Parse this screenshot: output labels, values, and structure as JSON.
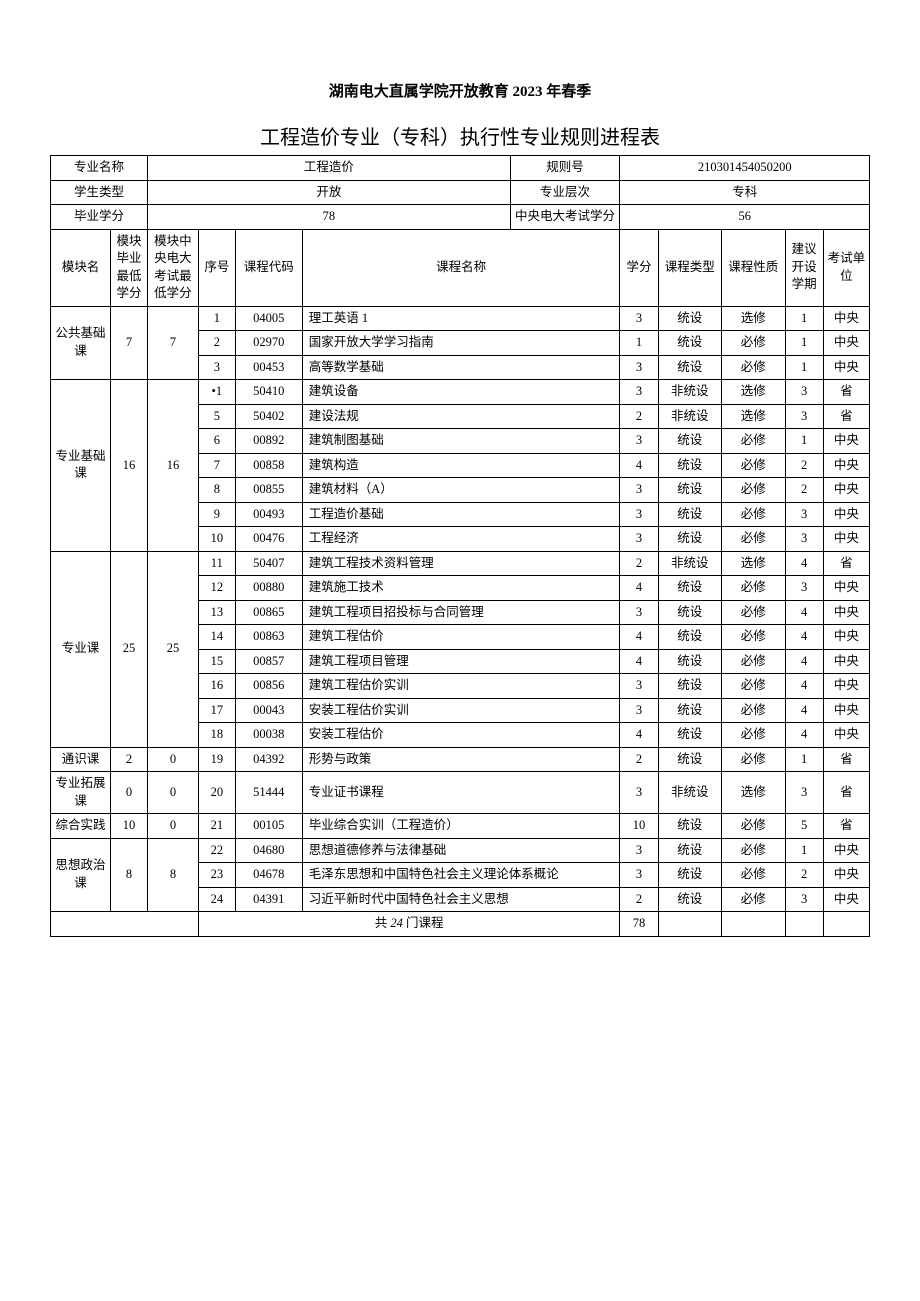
{
  "title_line1": "湖南电大直属学院开放教育 2023 年春季",
  "title_line2": "工程造价专业（专科）执行性专业规则进程表",
  "header": {
    "labels": {
      "major_name": "专业名称",
      "student_type": "学生类型",
      "grad_credits": "毕业学分",
      "rule_no": "规则号",
      "level": "专业层次",
      "central_exam_credits": "中央电大考试学分"
    },
    "values": {
      "major_name": "工程造价",
      "student_type": "开放",
      "grad_credits": "78",
      "rule_no": "210301454050200",
      "level": "专科",
      "central_exam_credits": "56"
    }
  },
  "columns": {
    "module": "模块名",
    "module_min": "模块毕业最低学分",
    "module_central_min": "模块中央电大考试最低学分",
    "seq": "序号",
    "code": "课程代码",
    "course": "课程名称",
    "credit": "学分",
    "ctype": "课程类型",
    "cnature": "课程性质",
    "semester": "建议开设学期",
    "unit": "考试单位"
  },
  "modules": [
    {
      "name": "公共基础课",
      "min": "7",
      "cen": "7",
      "rows": [
        {
          "seq": "1",
          "code": "04005",
          "course": "理工英语 1",
          "credit": "3",
          "ctype": "统设",
          "nat": "选修",
          "sem": "1",
          "unit": "中央"
        },
        {
          "seq": "2",
          "code": "02970",
          "course": "国家开放大学学习指南",
          "credit": "1",
          "ctype": "统设",
          "nat": "必修",
          "sem": "1",
          "unit": "中央"
        },
        {
          "seq": "3",
          "code": "00453",
          "course": "高等数学基础",
          "credit": "3",
          "ctype": "统设",
          "nat": "必修",
          "sem": "1",
          "unit": "中央"
        }
      ]
    },
    {
      "name": "专业基础课",
      "min": "16",
      "cen": "16",
      "rows": [
        {
          "seq": "•1",
          "code": "50410",
          "course": "建筑设备",
          "credit": "3",
          "ctype": "非统设",
          "nat": "选修",
          "sem": "3",
          "unit": "省"
        },
        {
          "seq": "5",
          "code": "50402",
          "course": "建设法规",
          "credit": "2",
          "ctype": "非统设",
          "nat": "选修",
          "sem": "3",
          "unit": "省"
        },
        {
          "seq": "6",
          "code": "00892",
          "course": "建筑制图基础",
          "credit": "3",
          "ctype": "统设",
          "nat": "必修",
          "sem": "1",
          "unit": "中央"
        },
        {
          "seq": "7",
          "code": "00858",
          "course": "建筑构造",
          "credit": "4",
          "ctype": "统设",
          "nat": "必修",
          "sem": "2",
          "unit": "中央"
        },
        {
          "seq": "8",
          "code": "00855",
          "course": "建筑材料（A）",
          "credit": "3",
          "ctype": "统设",
          "nat": "必修",
          "sem": "2",
          "unit": "中央"
        },
        {
          "seq": "9",
          "code": "00493",
          "course": "工程造价基础",
          "credit": "3",
          "ctype": "统设",
          "nat": "必修",
          "sem": "3",
          "unit": "中央"
        },
        {
          "seq": "10",
          "code": "00476",
          "course": "工程经济",
          "credit": "3",
          "ctype": "统设",
          "nat": "必修",
          "sem": "3",
          "unit": "中央"
        }
      ]
    },
    {
      "name": "专业课",
      "min": "25",
      "cen": "25",
      "rows": [
        {
          "seq": "11",
          "code": "50407",
          "course": "建筑工程技术资料管理",
          "credit": "2",
          "ctype": "非统设",
          "nat": "选修",
          "sem": "4",
          "unit": "省"
        },
        {
          "seq": "12",
          "code": "00880",
          "course": "建筑施工技术",
          "credit": "4",
          "ctype": "统设",
          "nat": "必修",
          "sem": "3",
          "unit": "中央"
        },
        {
          "seq": "13",
          "code": "00865",
          "course": "建筑工程项目招投标与合同管理",
          "credit": "3",
          "ctype": "统设",
          "nat": "必修",
          "sem": "4",
          "unit": "中央"
        },
        {
          "seq": "14",
          "code": "00863",
          "course": "建筑工程估价",
          "credit": "4",
          "ctype": "统设",
          "nat": "必修",
          "sem": "4",
          "unit": "中央"
        },
        {
          "seq": "15",
          "code": "00857",
          "course": "建筑工程项目管理",
          "credit": "4",
          "ctype": "统设",
          "nat": "必修",
          "sem": "4",
          "unit": "中央"
        },
        {
          "seq": "16",
          "code": "00856",
          "course": "建筑工程估价实训",
          "credit": "3",
          "ctype": "统设",
          "nat": "必修",
          "sem": "4",
          "unit": "中央"
        },
        {
          "seq": "17",
          "code": "00043",
          "course": "安装工程估价实训",
          "credit": "3",
          "ctype": "统设",
          "nat": "必修",
          "sem": "4",
          "unit": "中央"
        },
        {
          "seq": "18",
          "code": "00038",
          "course": "安装工程估价",
          "credit": "4",
          "ctype": "统设",
          "nat": "必修",
          "sem": "4",
          "unit": "中央"
        }
      ]
    },
    {
      "name": "通识课",
      "min": "2",
      "cen": "0",
      "rows": [
        {
          "seq": "19",
          "code": "04392",
          "course": "形势与政策",
          "credit": "2",
          "ctype": "统设",
          "nat": "必修",
          "sem": "1",
          "unit": "省"
        }
      ]
    },
    {
      "name": "专业拓展课",
      "min": "0",
      "cen": "0",
      "rows": [
        {
          "seq": "20",
          "code": "51444",
          "course": "专业证书课程",
          "credit": "3",
          "ctype": "非统设",
          "nat": "选修",
          "sem": "3",
          "unit": "省"
        }
      ]
    },
    {
      "name": "综合实践",
      "min": "10",
      "cen": "0",
      "rows": [
        {
          "seq": "21",
          "code": "00105",
          "course": "毕业综合实训（工程造价）",
          "credit": "10",
          "ctype": "统设",
          "nat": "必修",
          "sem": "5",
          "unit": "省"
        }
      ]
    },
    {
      "name": "思想政治课",
      "min": "8",
      "cen": "8",
      "rows": [
        {
          "seq": "22",
          "code": "04680",
          "course": "思想道德修养与法律基础",
          "credit": "3",
          "ctype": "统设",
          "nat": "必修",
          "sem": "1",
          "unit": "中央"
        },
        {
          "seq": "23",
          "code": "04678",
          "course": "毛泽东思想和中国特色社会主义理论体系概论",
          "credit": "3",
          "ctype": "统设",
          "nat": "必修",
          "sem": "2",
          "unit": "中央"
        },
        {
          "seq": "24",
          "code": "04391",
          "course": "习近平新时代中国特色社会主义思想",
          "credit": "2",
          "ctype": "统设",
          "nat": "必修",
          "sem": "3",
          "unit": "中央"
        }
      ]
    }
  ],
  "footer": {
    "total_label_prefix": "共 ",
    "total_count": "24",
    "total_label_suffix": " 门课程",
    "total_credits": "78"
  }
}
